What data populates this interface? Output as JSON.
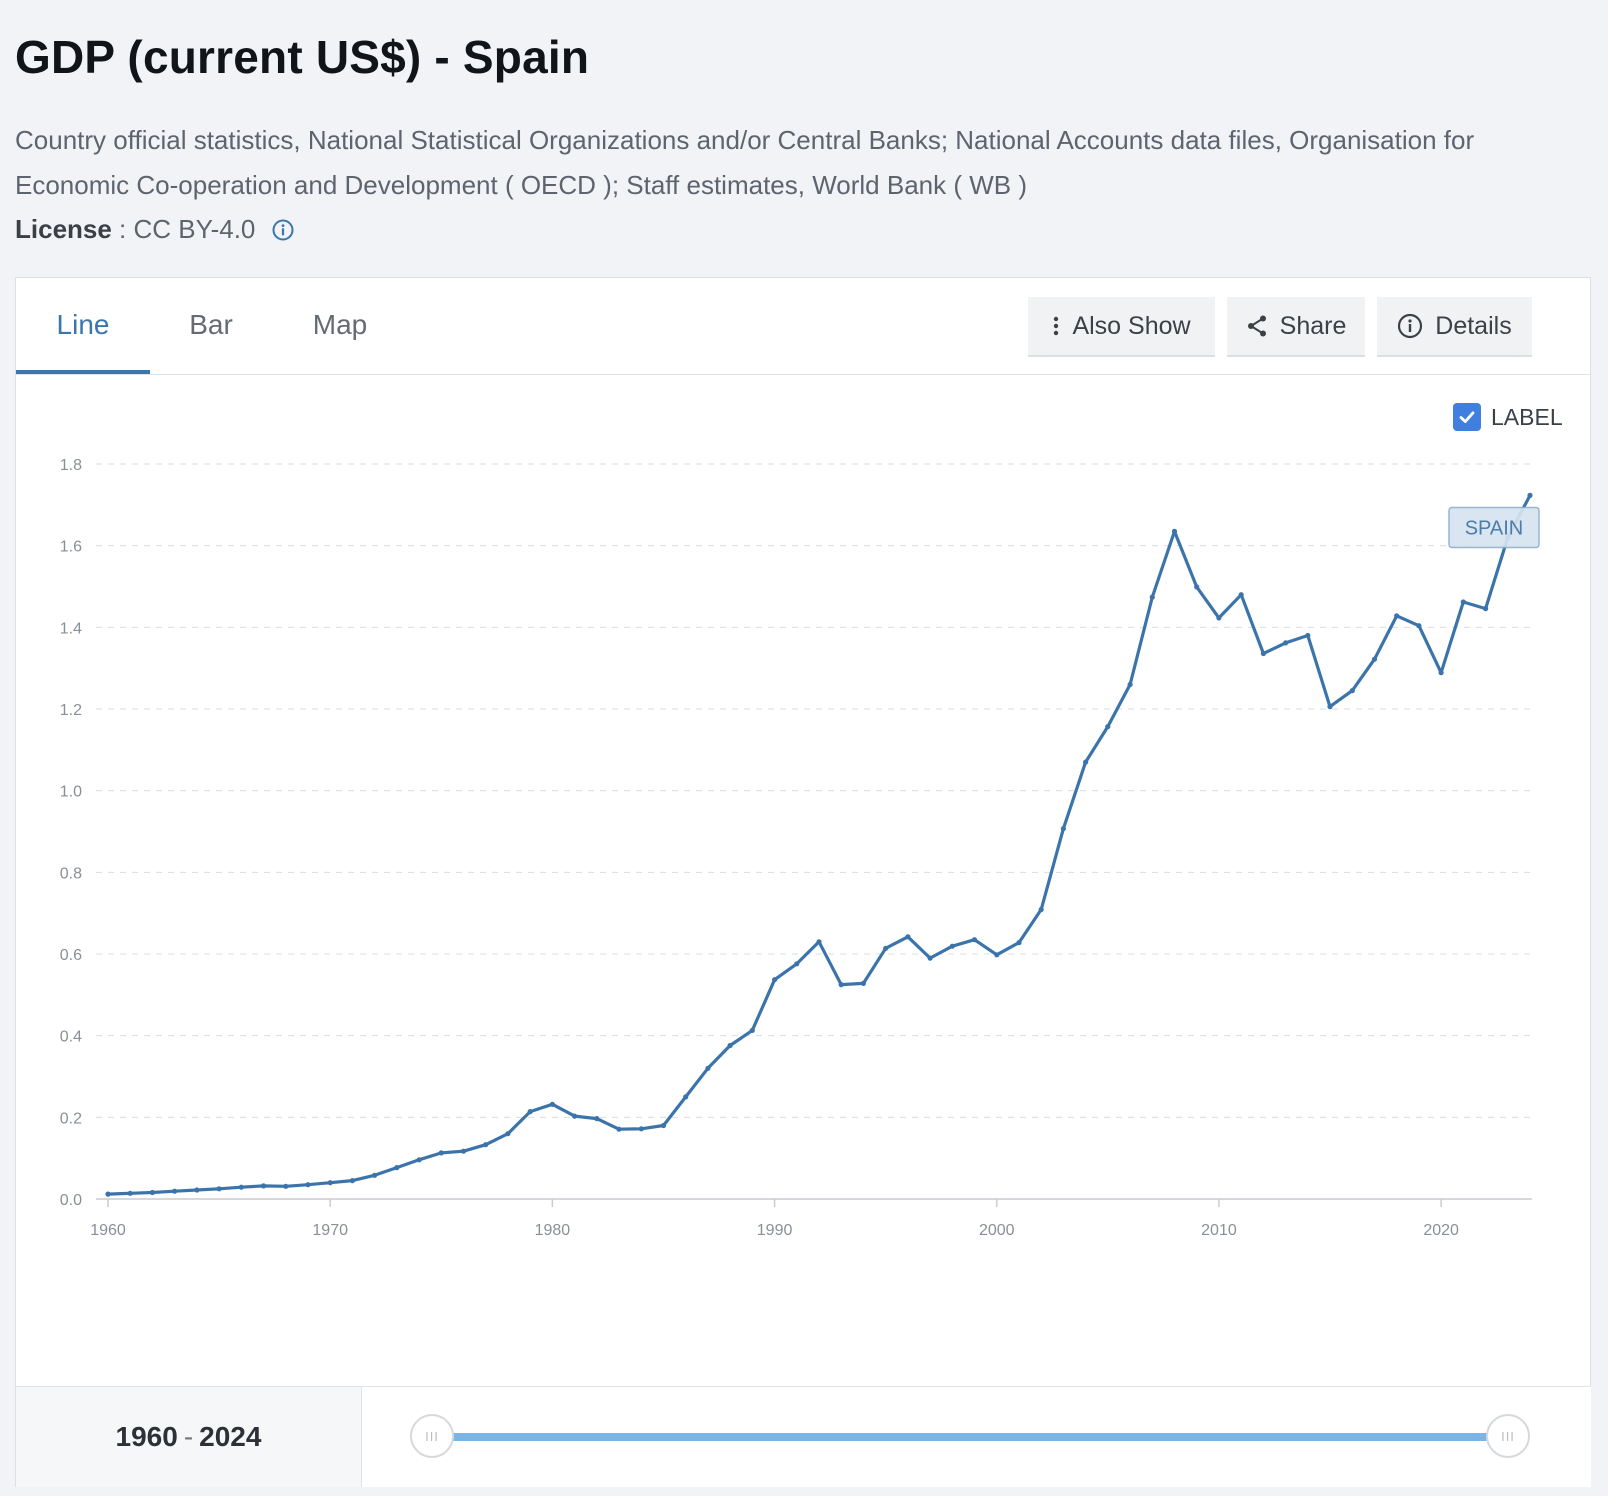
{
  "header": {
    "title": "GDP (current US$) - Spain",
    "source": "Country official statistics, National Statistical Organizations and/or Central Banks; National Accounts data files, Organisation for Economic Co-operation and Development ( OECD ); Staff estimates, World Bank ( WB )",
    "license_key": "License",
    "license_sep": " : ",
    "license_value": "CC BY-4.0"
  },
  "tabs": {
    "line": "Line",
    "bar": "Bar",
    "map": "Map"
  },
  "tools": {
    "also_show": "Also Show",
    "share": "Share",
    "details": "Details"
  },
  "label_toggle": {
    "text": "LABEL",
    "checked": true
  },
  "range": {
    "start": "1960",
    "sep": "-",
    "end": "2024",
    "start_fraction": 0,
    "end_fraction": 1
  },
  "colors": {
    "accent": "#3a75ad",
    "series": "#3b74ab",
    "slider": "#7bb5e6",
    "checkbox": "#3e7fe0"
  },
  "chart_data": {
    "type": "line",
    "title": "GDP (current US$) - Spain",
    "xlabel": "",
    "ylabel": "",
    "xlim": [
      1960,
      2024
    ],
    "ylim": [
      0,
      1.8
    ],
    "yticks": [
      "0.0",
      "0.2",
      "0.4",
      "0.6",
      "0.8",
      "1.0",
      "1.2",
      "1.4",
      "1.6",
      "1.8"
    ],
    "xticks": [
      "1960",
      "1970",
      "1980",
      "1990",
      "2000",
      "2010",
      "2020"
    ],
    "grid": true,
    "series": [
      {
        "name": "Spain",
        "label": "SPAIN",
        "x": [
          1960,
          1961,
          1962,
          1963,
          1964,
          1965,
          1966,
          1967,
          1968,
          1969,
          1970,
          1971,
          1972,
          1973,
          1974,
          1975,
          1976,
          1977,
          1978,
          1979,
          1980,
          1981,
          1982,
          1983,
          1984,
          1985,
          1986,
          1987,
          1988,
          1989,
          1990,
          1991,
          1992,
          1993,
          1994,
          1995,
          1996,
          1997,
          1998,
          1999,
          2000,
          2001,
          2002,
          2003,
          2004,
          2005,
          2006,
          2007,
          2008,
          2009,
          2010,
          2011,
          2012,
          2013,
          2014,
          2015,
          2016,
          2017,
          2018,
          2019,
          2020,
          2021,
          2022,
          2023,
          2024
        ],
        "values": [
          0.012,
          0.014,
          0.016,
          0.019,
          0.022,
          0.025,
          0.029,
          0.032,
          0.031,
          0.035,
          0.04,
          0.045,
          0.058,
          0.077,
          0.096,
          0.113,
          0.117,
          0.133,
          0.16,
          0.214,
          0.232,
          0.203,
          0.197,
          0.171,
          0.172,
          0.18,
          0.25,
          0.32,
          0.376,
          0.413,
          0.537,
          0.576,
          0.63,
          0.525,
          0.528,
          0.614,
          0.642,
          0.59,
          0.619,
          0.635,
          0.598,
          0.628,
          0.709,
          0.907,
          1.07,
          1.157,
          1.26,
          1.474,
          1.635,
          1.499,
          1.423,
          1.48,
          1.336,
          1.362,
          1.38,
          1.206,
          1.245,
          1.322,
          1.428,
          1.404,
          1.289,
          1.462,
          1.446,
          1.62,
          1.723
        ]
      }
    ]
  }
}
